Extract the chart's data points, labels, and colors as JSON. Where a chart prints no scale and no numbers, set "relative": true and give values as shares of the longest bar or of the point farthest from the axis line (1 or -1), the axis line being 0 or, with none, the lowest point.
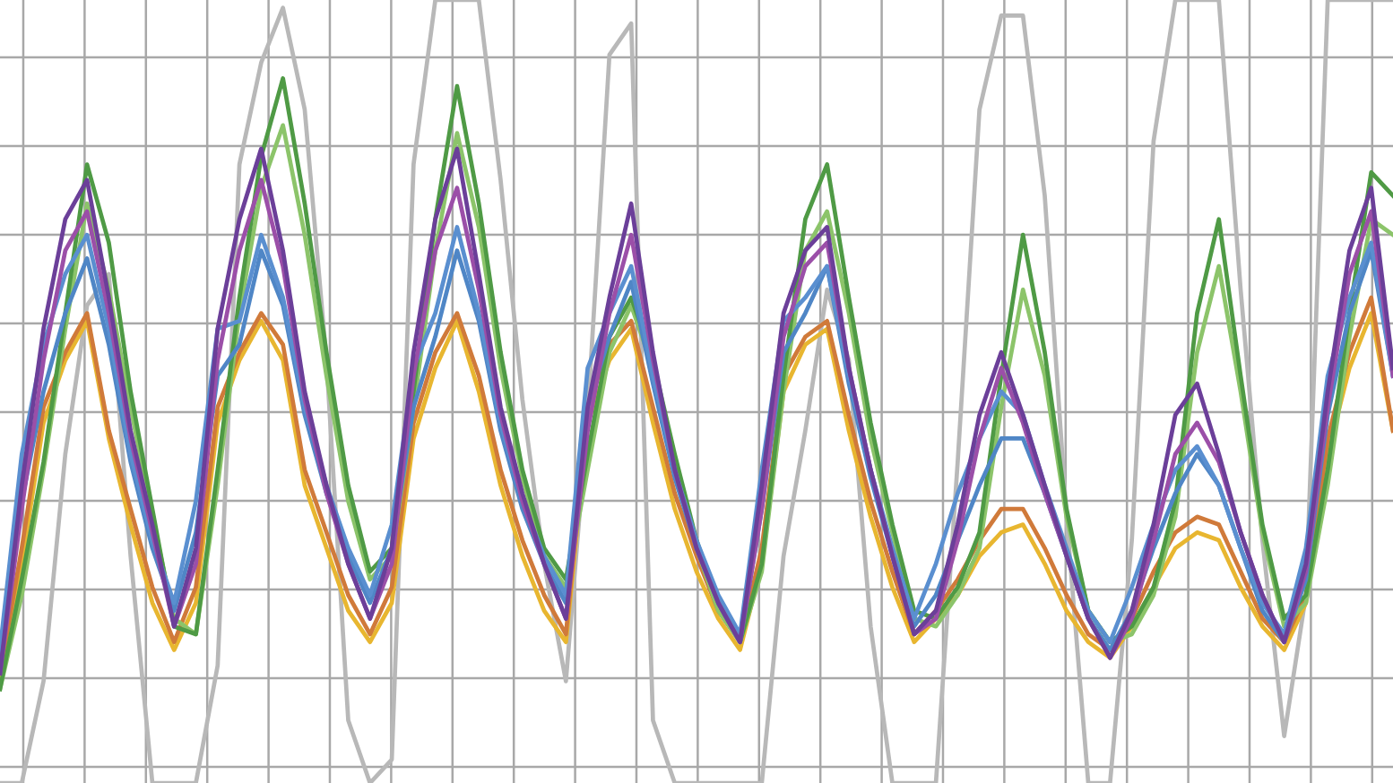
{
  "chart_data": {
    "type": "line",
    "relative": true,
    "grid": true,
    "tick_labels": false,
    "legend": false,
    "marker": "none",
    "line_style": "solid",
    "categories": [
      null,
      null,
      null,
      null,
      null,
      null,
      null,
      null,
      null,
      null,
      null,
      null,
      null,
      null,
      null,
      null,
      null,
      null,
      null,
      null,
      null,
      null,
      null,
      null,
      null,
      null,
      null,
      null,
      null,
      null,
      null,
      null,
      null,
      null,
      null,
      null,
      null,
      null,
      null,
      null,
      null,
      null,
      null,
      null,
      null,
      null,
      null,
      null,
      null,
      null,
      null,
      null,
      null,
      null,
      null,
      null,
      null,
      null,
      null,
      null,
      null,
      null,
      null,
      null,
      null
    ],
    "series": [
      {
        "color": "#b8b8b8",
        "values": [
          0,
          0,
          0.13,
          0.42,
          0.61,
          0.65,
          0.29,
          0,
          0,
          0,
          0.15,
          0.79,
          0.92,
          0.99,
          0.86,
          0.54,
          0.08,
          0,
          0.03,
          0.79,
          1,
          1,
          1,
          0.77,
          0.49,
          0.28,
          0.13,
          0.47,
          0.93,
          0.97,
          0.08,
          0,
          0,
          0,
          0,
          0,
          0.29,
          0.45,
          0.63,
          0.54,
          0.2,
          0,
          0,
          0,
          0.41,
          0.86,
          0.98,
          0.98,
          0.75,
          0.34,
          0,
          0,
          0.31,
          0.82,
          1,
          1,
          1,
          0.63,
          0.31,
          0.06,
          0.24,
          1,
          1,
          1,
          1
        ]
      },
      {
        "color": "#e8b630",
        "values": [
          0.13,
          0.28,
          0.46,
          0.54,
          0.59,
          0.44,
          0.33,
          0.23,
          0.17,
          0.23,
          0.46,
          0.54,
          0.59,
          0.54,
          0.38,
          0.3,
          0.22,
          0.18,
          0.23,
          0.44,
          0.53,
          0.59,
          0.5,
          0.38,
          0.29,
          0.22,
          0.18,
          0.46,
          0.54,
          0.58,
          0.46,
          0.35,
          0.27,
          0.21,
          0.17,
          0.28,
          0.5,
          0.56,
          0.58,
          0.45,
          0.34,
          0.25,
          0.18,
          0.21,
          0.24,
          0.29,
          0.32,
          0.33,
          0.28,
          0.22,
          0.18,
          0.16,
          0.2,
          0.25,
          0.3,
          0.32,
          0.31,
          0.25,
          0.2,
          0.17,
          0.23,
          0.42,
          0.53,
          0.6,
          0.45
        ]
      },
      {
        "color": "#d07a3a",
        "values": [
          0.14,
          0.3,
          0.48,
          0.55,
          0.6,
          0.45,
          0.35,
          0.25,
          0.18,
          0.25,
          0.48,
          0.55,
          0.6,
          0.56,
          0.4,
          0.32,
          0.24,
          0.19,
          0.25,
          0.46,
          0.55,
          0.6,
          0.52,
          0.4,
          0.31,
          0.24,
          0.19,
          0.48,
          0.56,
          0.59,
          0.48,
          0.37,
          0.29,
          0.22,
          0.18,
          0.3,
          0.52,
          0.57,
          0.59,
          0.47,
          0.36,
          0.27,
          0.19,
          0.22,
          0.26,
          0.31,
          0.35,
          0.35,
          0.3,
          0.24,
          0.19,
          0.17,
          0.21,
          0.27,
          0.32,
          0.34,
          0.33,
          0.27,
          0.21,
          0.18,
          0.24,
          0.44,
          0.55,
          0.62,
          0.45
        ]
      },
      {
        "color": "#8cc46a",
        "values": [
          0.12,
          0.24,
          0.4,
          0.58,
          0.74,
          0.63,
          0.48,
          0.34,
          0.21,
          0.19,
          0.38,
          0.6,
          0.76,
          0.84,
          0.7,
          0.52,
          0.36,
          0.26,
          0.29,
          0.48,
          0.68,
          0.83,
          0.71,
          0.53,
          0.39,
          0.29,
          0.25,
          0.4,
          0.55,
          0.61,
          0.53,
          0.41,
          0.3,
          0.22,
          0.18,
          0.27,
          0.5,
          0.68,
          0.73,
          0.6,
          0.44,
          0.32,
          0.21,
          0.2,
          0.24,
          0.3,
          0.48,
          0.63,
          0.52,
          0.34,
          0.22,
          0.18,
          0.19,
          0.24,
          0.34,
          0.55,
          0.66,
          0.5,
          0.32,
          0.2,
          0.23,
          0.38,
          0.57,
          0.72,
          0.7
        ]
      },
      {
        "color": "#4f9a45",
        "values": [
          0.12,
          0.26,
          0.41,
          0.6,
          0.79,
          0.69,
          0.5,
          0.35,
          0.2,
          0.19,
          0.4,
          0.62,
          0.8,
          0.9,
          0.74,
          0.55,
          0.38,
          0.27,
          0.3,
          0.5,
          0.72,
          0.89,
          0.74,
          0.55,
          0.4,
          0.3,
          0.26,
          0.42,
          0.57,
          0.62,
          0.54,
          0.42,
          0.31,
          0.23,
          0.18,
          0.28,
          0.52,
          0.72,
          0.79,
          0.62,
          0.46,
          0.33,
          0.22,
          0.21,
          0.25,
          0.32,
          0.52,
          0.7,
          0.55,
          0.35,
          0.22,
          0.18,
          0.2,
          0.25,
          0.36,
          0.6,
          0.72,
          0.52,
          0.33,
          0.21,
          0.24,
          0.4,
          0.6,
          0.78,
          0.75
        ]
      },
      {
        "color": "#4f86c6",
        "values": [
          0.16,
          0.36,
          0.5,
          0.6,
          0.67,
          0.56,
          0.41,
          0.3,
          0.22,
          0.32,
          0.52,
          0.56,
          0.68,
          0.61,
          0.47,
          0.37,
          0.29,
          0.23,
          0.3,
          0.48,
          0.57,
          0.68,
          0.59,
          0.45,
          0.35,
          0.28,
          0.23,
          0.48,
          0.57,
          0.64,
          0.51,
          0.39,
          0.3,
          0.23,
          0.18,
          0.35,
          0.55,
          0.6,
          0.66,
          0.51,
          0.39,
          0.29,
          0.2,
          0.24,
          0.31,
          0.38,
          0.44,
          0.44,
          0.37,
          0.29,
          0.21,
          0.17,
          0.22,
          0.3,
          0.37,
          0.42,
          0.38,
          0.3,
          0.22,
          0.18,
          0.26,
          0.47,
          0.6,
          0.68,
          0.52
        ]
      },
      {
        "color": "#5a8fd0",
        "values": [
          0.17,
          0.42,
          0.56,
          0.65,
          0.7,
          0.58,
          0.42,
          0.31,
          0.23,
          0.36,
          0.58,
          0.59,
          0.7,
          0.62,
          0.48,
          0.38,
          0.3,
          0.24,
          0.33,
          0.53,
          0.6,
          0.71,
          0.6,
          0.46,
          0.36,
          0.29,
          0.24,
          0.53,
          0.6,
          0.66,
          0.52,
          0.4,
          0.31,
          0.24,
          0.19,
          0.4,
          0.59,
          0.62,
          0.66,
          0.52,
          0.4,
          0.3,
          0.21,
          0.28,
          0.37,
          0.44,
          0.5,
          0.47,
          0.38,
          0.3,
          0.22,
          0.18,
          0.25,
          0.33,
          0.4,
          0.43,
          0.38,
          0.3,
          0.23,
          0.19,
          0.3,
          0.52,
          0.62,
          0.69,
          0.52
        ]
      },
      {
        "color": "#9b4fa8",
        "values": [
          0.14,
          0.35,
          0.54,
          0.68,
          0.73,
          0.6,
          0.44,
          0.32,
          0.2,
          0.28,
          0.54,
          0.68,
          0.77,
          0.66,
          0.49,
          0.37,
          0.28,
          0.21,
          0.28,
          0.52,
          0.68,
          0.76,
          0.63,
          0.47,
          0.36,
          0.28,
          0.21,
          0.45,
          0.6,
          0.7,
          0.54,
          0.4,
          0.3,
          0.23,
          0.18,
          0.35,
          0.57,
          0.66,
          0.69,
          0.53,
          0.4,
          0.29,
          0.19,
          0.21,
          0.31,
          0.44,
          0.53,
          0.46,
          0.37,
          0.29,
          0.21,
          0.16,
          0.21,
          0.31,
          0.42,
          0.46,
          0.41,
          0.32,
          0.24,
          0.18,
          0.27,
          0.48,
          0.65,
          0.73,
          0.52
        ]
      },
      {
        "color": "#6b3f99",
        "values": [
          0.14,
          0.38,
          0.58,
          0.72,
          0.77,
          0.62,
          0.45,
          0.33,
          0.2,
          0.3,
          0.58,
          0.72,
          0.81,
          0.68,
          0.5,
          0.38,
          0.28,
          0.21,
          0.3,
          0.55,
          0.72,
          0.81,
          0.65,
          0.48,
          0.37,
          0.28,
          0.21,
          0.48,
          0.62,
          0.74,
          0.55,
          0.4,
          0.3,
          0.23,
          0.18,
          0.38,
          0.6,
          0.68,
          0.71,
          0.53,
          0.4,
          0.29,
          0.19,
          0.22,
          0.33,
          0.47,
          0.55,
          0.47,
          0.38,
          0.29,
          0.21,
          0.16,
          0.22,
          0.33,
          0.47,
          0.51,
          0.42,
          0.32,
          0.24,
          0.18,
          0.28,
          0.5,
          0.68,
          0.76,
          0.53
        ]
      }
    ]
  }
}
